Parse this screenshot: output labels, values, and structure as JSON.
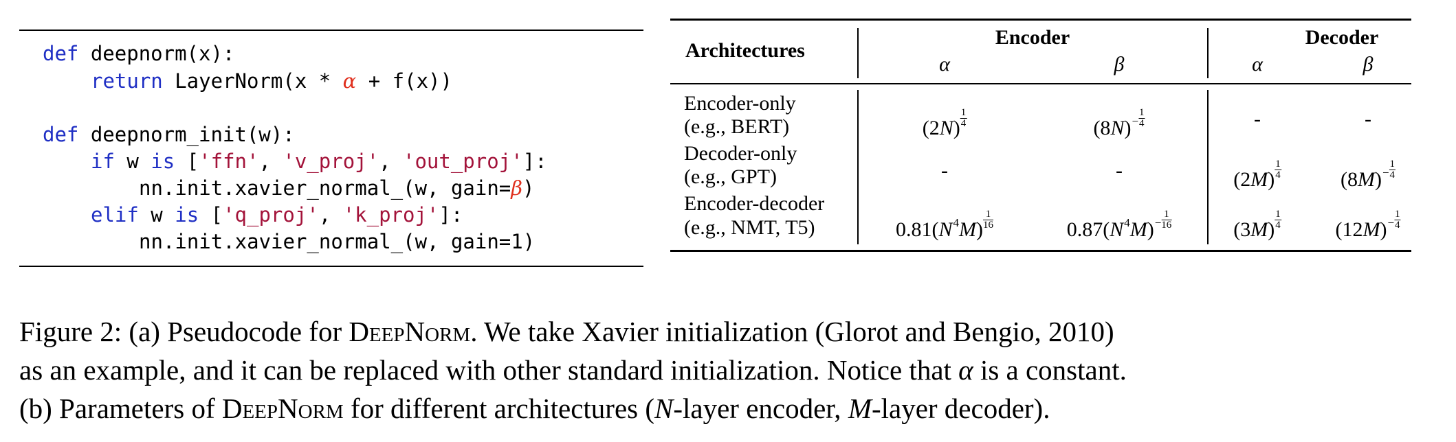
{
  "code": {
    "def_kw": "def",
    "return_kw": "return",
    "if_kw": "if",
    "is_kw": "is",
    "elif_kw": "elif",
    "line1_name": " deepnorm(x):",
    "line2_a": " LayerNorm(x * ",
    "alpha": "α",
    "line2_b": " + f(x))",
    "line3_name": " deepnorm_init(w):",
    "line4_w": " w ",
    "line4_open": " [",
    "str_ffn": "'ffn'",
    "str_v_proj": "'v_proj'",
    "str_out_proj": "'out_proj'",
    "comma": ", ",
    "line4_close": "]:",
    "line5_a": "nn.init.xavier_normal_(w, gain=",
    "beta": "β",
    "line5_b": ")",
    "str_q_proj": "'q_proj'",
    "str_k_proj": "'k_proj'",
    "line7": "nn.init.xavier_normal_(w, gain=1)"
  },
  "table": {
    "col_architectures": "Architectures",
    "group_encoder": "Encoder",
    "group_decoder": "Decoder",
    "sub_alpha": "α",
    "sub_beta": "β",
    "rows": [
      {
        "arch": "Encoder-only",
        "example": "(e.g., BERT)",
        "dash": "-"
      },
      {
        "arch": "Decoder-only",
        "example": "(e.g., GPT)",
        "dash": "-"
      },
      {
        "arch": "Encoder-decoder",
        "example": "(e.g., NMT, T5)"
      }
    ],
    "math": {
      "enc_only_enc_alpha": {
        "base": "(2",
        "var": "N",
        "close": ")",
        "num": "1",
        "den": "4"
      },
      "enc_only_enc_beta": {
        "base": "(8",
        "var": "N",
        "close": ")",
        "sign": "−",
        "num": "1",
        "den": "4"
      },
      "dec_only_dec_alpha": {
        "base": "(2",
        "var": "M",
        "close": ")",
        "num": "1",
        "den": "4"
      },
      "dec_only_dec_beta": {
        "base": "(8",
        "var": "M",
        "close": ")",
        "sign": "−",
        "num": "1",
        "den": "4"
      },
      "encdec_enc_alpha": {
        "coef": "0.81(",
        "var1": "N",
        "pow": "4",
        "var2": "M",
        "close": ")",
        "num": "1",
        "den": "16"
      },
      "encdec_enc_beta": {
        "coef": "0.87(",
        "var1": "N",
        "pow": "4",
        "var2": "M",
        "close": ")",
        "sign": "−",
        "num": "1",
        "den": "16"
      },
      "encdec_dec_alpha": {
        "base": "(3",
        "var": "M",
        "close": ")",
        "num": "1",
        "den": "4"
      },
      "encdec_dec_beta": {
        "base": "(12",
        "var": "M",
        "close": ")",
        "sign": "−",
        "num": "1",
        "den": "4"
      }
    }
  },
  "caption": {
    "l1_a": "Figure 2: (a) Pseudocode for ",
    "deepnorm": "DeepNorm",
    "l1_b": ". We take Xavier initialization (Glorot and Bengio, 2010)",
    "l2_a": "as an example, and it can be replaced with other standard initialization. Notice that ",
    "alpha": "α",
    "l2_b": " is a constant.",
    "l3_a": "(b) Parameters of ",
    "l3_b": " for different architectures (",
    "N": "N",
    "l3_c": "-layer encoder, ",
    "M": "M",
    "l3_d": "-layer decoder)."
  }
}
